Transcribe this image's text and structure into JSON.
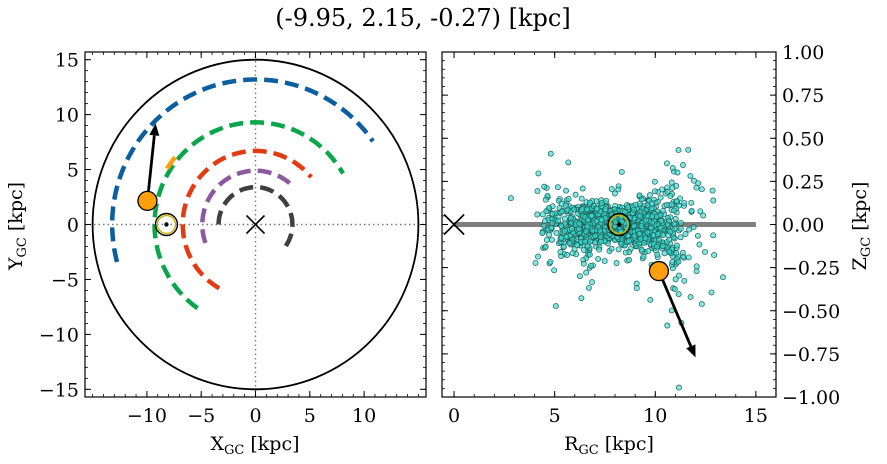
{
  "title": "(-9.95, 2.15, -0.27) [kpc]",
  "chart_data": [
    {
      "type": "scatter",
      "panel": "left",
      "xlabel_main": "X",
      "xlabel_sub": "GC",
      "xlabel_unit": " [kpc]",
      "ylabel_main": "Y",
      "ylabel_sub": "GC",
      "ylabel_unit": " [kpc]",
      "xlim": [
        -15.7,
        15.7
      ],
      "ylim": [
        -15.7,
        15.7
      ],
      "xticks": [
        -10,
        -5,
        0,
        5,
        10
      ],
      "xtick_labels": [
        "−10",
        "−5",
        "0",
        "5",
        "10"
      ],
      "yticks": [
        -15,
        -10,
        -5,
        0,
        5,
        10,
        15
      ],
      "ytick_labels": [
        "−15",
        "−10",
        "−5",
        "0",
        "5",
        "10",
        "15"
      ],
      "galaxy_boundary_radius": 15,
      "center_marker": {
        "x": 0,
        "y": 0,
        "symbol": "x"
      },
      "sun_marker": {
        "x": -8.2,
        "y": 0,
        "symbol": "circled-dot"
      },
      "object": {
        "x": -9.95,
        "y": 2.15,
        "color": "#ff9f0e"
      },
      "velocity_arrow": {
        "x0": -9.95,
        "y0": 2.15,
        "x1": -9.2,
        "y1": 9.2
      },
      "arms": [
        {
          "color": "#0b5fa0",
          "r": 13.2,
          "ang_start": 195,
          "ang_end": 35
        },
        {
          "color": "#0aa64b",
          "r": 9.3,
          "ang_start": 235,
          "ang_end": 30
        },
        {
          "color": "#e23a12",
          "r": 6.7,
          "ang_start": 240,
          "ang_end": 40
        },
        {
          "color": "#8a5aa0",
          "r": 4.9,
          "ang_start": 200,
          "ang_end": 45
        },
        {
          "color": "#3f3f3f",
          "r": 3.4,
          "ang_start": 180,
          "ang_end": -35
        },
        {
          "color": "#ff9f0e",
          "r": 9.6,
          "ang_start": 148,
          "ang_end": 138
        }
      ],
      "grid": false
    },
    {
      "type": "scatter",
      "panel": "right",
      "xlabel_main": "R",
      "xlabel_sub": "GC",
      "xlabel_unit": " [kpc]",
      "ylabel_main": "Z",
      "ylabel_sub": "GC",
      "ylabel_unit": " [kpc]",
      "xlim": [
        -0.6,
        16
      ],
      "ylim": [
        -1.0,
        1.0
      ],
      "xticks": [
        0,
        5,
        10,
        15
      ],
      "xtick_labels": [
        "0",
        "5",
        "10",
        "15"
      ],
      "yticks": [
        -1.0,
        -0.75,
        -0.5,
        -0.25,
        0.0,
        0.25,
        0.5,
        0.75,
        1.0
      ],
      "ytick_labels": [
        "−1.00",
        "−0.75",
        "−0.50",
        "−0.25",
        "0.00",
        "0.25",
        "0.50",
        "0.75",
        "1.00"
      ],
      "disk_line": {
        "x0": 0,
        "x1": 15,
        "z": 0,
        "color": "#7f7f7f"
      },
      "center_marker": {
        "x": 0,
        "y": 0,
        "symbol": "x"
      },
      "sun_marker": {
        "x": 8.2,
        "y": 0,
        "symbol": "circled-dot"
      },
      "object": {
        "x": 10.18,
        "y": -0.27,
        "color": "#ff9f0e"
      },
      "velocity_arrow": {
        "x0": 10.18,
        "y0": -0.27,
        "x1": 12.0,
        "y1": -0.77
      },
      "orbit_cloud": {
        "color": "#38dbd0",
        "edge_color": "#1f5f5a",
        "approx_points": 1400
      },
      "grid": false
    }
  ]
}
